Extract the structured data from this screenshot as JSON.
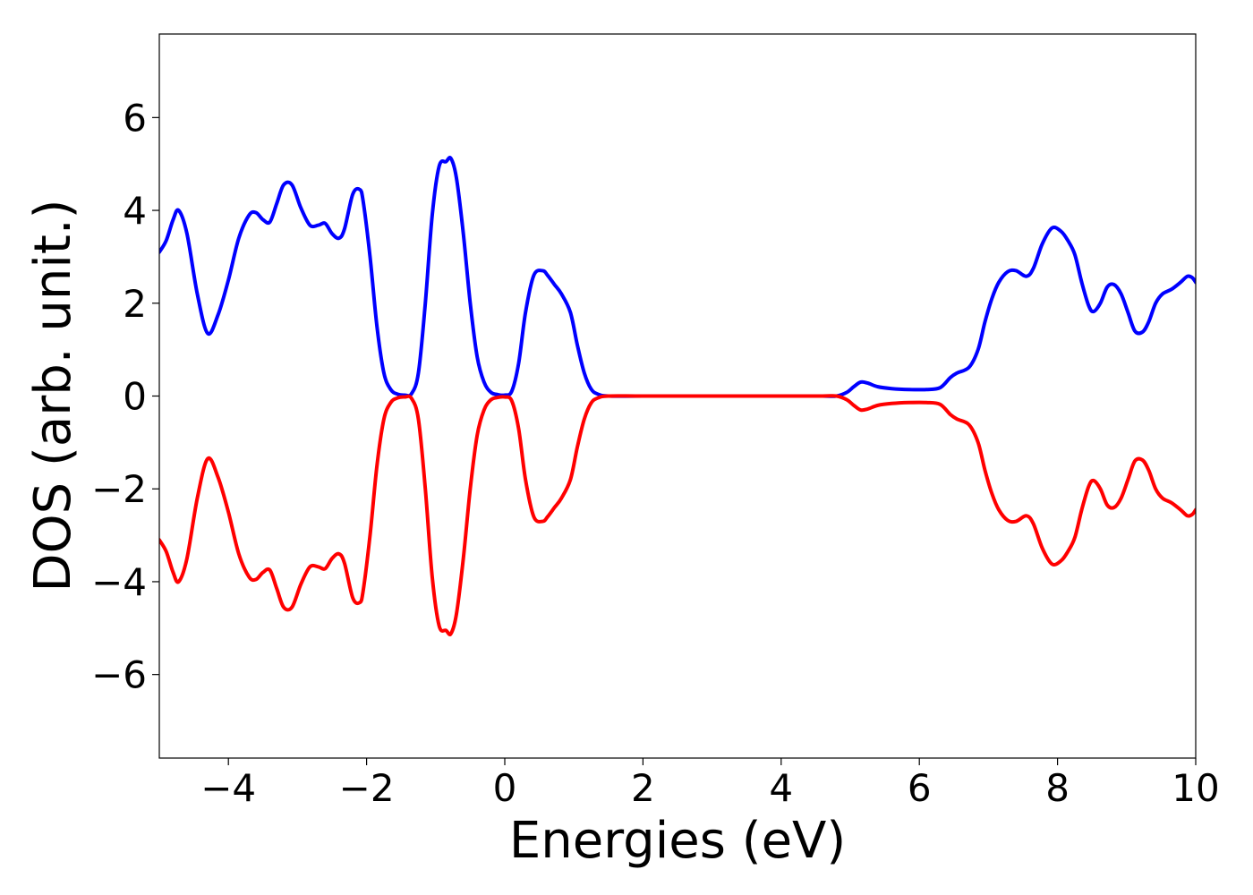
{
  "chart_data": {
    "type": "line",
    "title": "",
    "xlabel": "Energies (eV)",
    "ylabel": "DOS (arb. unit.)",
    "xlim": [
      -5,
      10
    ],
    "ylim": [
      -7.8,
      7.8
    ],
    "xticks": [
      -4,
      -2,
      0,
      2,
      4,
      6,
      8,
      10
    ],
    "xtick_labels": [
      "−4",
      "−2",
      "0",
      "2",
      "4",
      "6",
      "8",
      "10"
    ],
    "yticks": [
      6,
      4,
      2,
      0,
      -2,
      -4,
      -6
    ],
    "ytick_labels": [
      "6",
      "4",
      "2",
      "0",
      "−2",
      "−4",
      "−6"
    ],
    "grid": false,
    "legend": "none",
    "series": [
      {
        "color": "#0000ff",
        "x": [
          -5.0,
          -4.9,
          -4.8,
          -4.72,
          -4.6,
          -4.45,
          -4.3,
          -4.15,
          -4.0,
          -3.85,
          -3.7,
          -3.6,
          -3.5,
          -3.4,
          -3.3,
          -3.2,
          -3.08,
          -2.95,
          -2.82,
          -2.7,
          -2.6,
          -2.5,
          -2.4,
          -2.32,
          -2.2,
          -2.1,
          -2.05,
          -1.95,
          -1.85,
          -1.75,
          -1.65,
          -1.55,
          -1.45,
          -1.35,
          -1.25,
          -1.15,
          -1.05,
          -0.95,
          -0.85,
          -0.78,
          -0.7,
          -0.6,
          -0.5,
          -0.4,
          -0.3,
          -0.2,
          -0.1,
          0.0,
          0.1,
          0.2,
          0.3,
          0.42,
          0.55,
          0.62,
          0.72,
          0.82,
          0.95,
          1.05,
          1.15,
          1.25,
          1.35,
          1.5,
          2.0,
          3.0,
          4.0,
          4.6,
          4.8,
          4.95,
          5.05,
          5.15,
          5.25,
          5.4,
          5.6,
          5.85,
          6.1,
          6.3,
          6.45,
          6.55,
          6.72,
          6.85,
          6.95,
          7.05,
          7.15,
          7.28,
          7.4,
          7.55,
          7.65,
          7.78,
          7.92,
          8.05,
          8.15,
          8.25,
          8.35,
          8.45,
          8.52,
          8.62,
          8.72,
          8.82,
          8.92,
          9.02,
          9.12,
          9.23,
          9.32,
          9.42,
          9.52,
          9.65,
          9.78,
          9.88,
          9.95,
          10.0
        ],
        "y": [
          3.1,
          3.35,
          3.8,
          4.0,
          3.5,
          2.2,
          1.35,
          1.75,
          2.5,
          3.4,
          3.9,
          3.95,
          3.8,
          3.75,
          4.15,
          4.55,
          4.55,
          4.05,
          3.68,
          3.68,
          3.72,
          3.5,
          3.4,
          3.6,
          4.35,
          4.45,
          4.2,
          3.0,
          1.5,
          0.5,
          0.14,
          0.04,
          0.02,
          0.05,
          0.5,
          2.0,
          3.9,
          4.95,
          5.05,
          5.12,
          4.7,
          3.5,
          2.0,
          0.85,
          0.3,
          0.08,
          0.03,
          0.02,
          0.1,
          0.7,
          1.8,
          2.6,
          2.7,
          2.6,
          2.4,
          2.2,
          1.8,
          1.1,
          0.5,
          0.15,
          0.04,
          0.0,
          0.0,
          0.0,
          0.0,
          0.0,
          0.0,
          0.08,
          0.2,
          0.3,
          0.28,
          0.2,
          0.16,
          0.14,
          0.14,
          0.18,
          0.4,
          0.5,
          0.62,
          1.0,
          1.6,
          2.1,
          2.45,
          2.68,
          2.7,
          2.58,
          2.75,
          3.28,
          3.62,
          3.55,
          3.35,
          3.05,
          2.45,
          1.95,
          1.82,
          2.0,
          2.35,
          2.4,
          2.2,
          1.8,
          1.4,
          1.38,
          1.6,
          2.0,
          2.2,
          2.3,
          2.45,
          2.58,
          2.55,
          2.45
        ]
      },
      {
        "color": "#ff0000",
        "x": [
          -5.0,
          -4.9,
          -4.8,
          -4.72,
          -4.6,
          -4.45,
          -4.3,
          -4.15,
          -4.0,
          -3.85,
          -3.7,
          -3.6,
          -3.5,
          -3.4,
          -3.3,
          -3.2,
          -3.08,
          -2.95,
          -2.82,
          -2.7,
          -2.6,
          -2.5,
          -2.4,
          -2.32,
          -2.2,
          -2.1,
          -2.05,
          -1.95,
          -1.85,
          -1.75,
          -1.65,
          -1.55,
          -1.45,
          -1.35,
          -1.25,
          -1.15,
          -1.05,
          -0.95,
          -0.85,
          -0.78,
          -0.7,
          -0.6,
          -0.5,
          -0.4,
          -0.3,
          -0.2,
          -0.1,
          0.0,
          0.1,
          0.2,
          0.3,
          0.42,
          0.55,
          0.62,
          0.72,
          0.82,
          0.95,
          1.05,
          1.15,
          1.25,
          1.35,
          1.5,
          2.0,
          3.0,
          4.0,
          4.6,
          4.8,
          4.95,
          5.05,
          5.15,
          5.25,
          5.4,
          5.6,
          5.85,
          6.1,
          6.3,
          6.45,
          6.55,
          6.72,
          6.85,
          6.95,
          7.05,
          7.15,
          7.28,
          7.4,
          7.55,
          7.65,
          7.78,
          7.92,
          8.05,
          8.15,
          8.25,
          8.35,
          8.45,
          8.52,
          8.62,
          8.72,
          8.82,
          8.92,
          9.02,
          9.12,
          9.23,
          9.32,
          9.42,
          9.52,
          9.65,
          9.78,
          9.88,
          9.95,
          10.0
        ],
        "y": [
          -3.1,
          -3.35,
          -3.8,
          -4.0,
          -3.5,
          -2.2,
          -1.35,
          -1.75,
          -2.5,
          -3.4,
          -3.9,
          -3.95,
          -3.8,
          -3.75,
          -4.15,
          -4.55,
          -4.55,
          -4.05,
          -3.68,
          -3.68,
          -3.72,
          -3.5,
          -3.4,
          -3.6,
          -4.35,
          -4.45,
          -4.2,
          -3.0,
          -1.5,
          -0.5,
          -0.14,
          -0.04,
          -0.02,
          -0.05,
          -0.5,
          -2.0,
          -3.9,
          -4.95,
          -5.05,
          -5.12,
          -4.7,
          -3.5,
          -2.0,
          -0.85,
          -0.3,
          -0.08,
          -0.03,
          -0.02,
          -0.1,
          -0.7,
          -1.8,
          -2.6,
          -2.7,
          -2.6,
          -2.4,
          -2.2,
          -1.8,
          -1.1,
          -0.5,
          -0.15,
          -0.04,
          0.0,
          0.0,
          0.0,
          0.0,
          0.0,
          0.0,
          -0.08,
          -0.2,
          -0.3,
          -0.28,
          -0.2,
          -0.16,
          -0.14,
          -0.14,
          -0.18,
          -0.4,
          -0.5,
          -0.62,
          -1.0,
          -1.6,
          -2.1,
          -2.45,
          -2.68,
          -2.7,
          -2.58,
          -2.75,
          -3.28,
          -3.62,
          -3.55,
          -3.35,
          -3.05,
          -2.45,
          -1.95,
          -1.82,
          -2.0,
          -2.35,
          -2.4,
          -2.2,
          -1.8,
          -1.4,
          -1.38,
          -1.6,
          -2.0,
          -2.2,
          -2.3,
          -2.45,
          -2.58,
          -2.55,
          -2.45
        ]
      }
    ]
  }
}
